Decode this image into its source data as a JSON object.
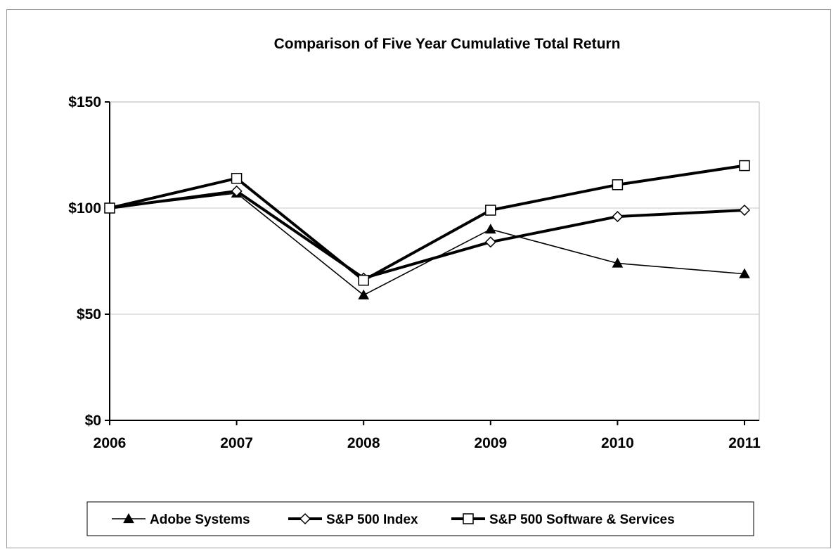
{
  "chart_data": {
    "type": "line",
    "title": "Comparison of Five Year Cumulative Total Return",
    "xlabel": "",
    "ylabel": "",
    "categories": [
      "2006",
      "2007",
      "2008",
      "2009",
      "2010",
      "2011"
    ],
    "y_tick_labels": [
      "$0",
      "$50",
      "$100",
      "$150"
    ],
    "y_ticks": [
      0,
      50,
      100,
      150
    ],
    "ylim": [
      0,
      150
    ],
    "grid": "horizontal",
    "legend_position": "bottom",
    "series": [
      {
        "name": "Adobe Systems",
        "values": [
          100,
          107,
          59,
          90,
          74,
          69
        ],
        "marker": "triangle",
        "weight": "thin",
        "color": "#000000"
      },
      {
        "name": "S&P 500 Index",
        "values": [
          100,
          108,
          67,
          84,
          96,
          99
        ],
        "marker": "diamond",
        "weight": "thick",
        "color": "#000000"
      },
      {
        "name": "S&P 500 Software & Services",
        "values": [
          100,
          114,
          66,
          99,
          111,
          120
        ],
        "marker": "square",
        "weight": "thick",
        "color": "#000000"
      }
    ]
  }
}
